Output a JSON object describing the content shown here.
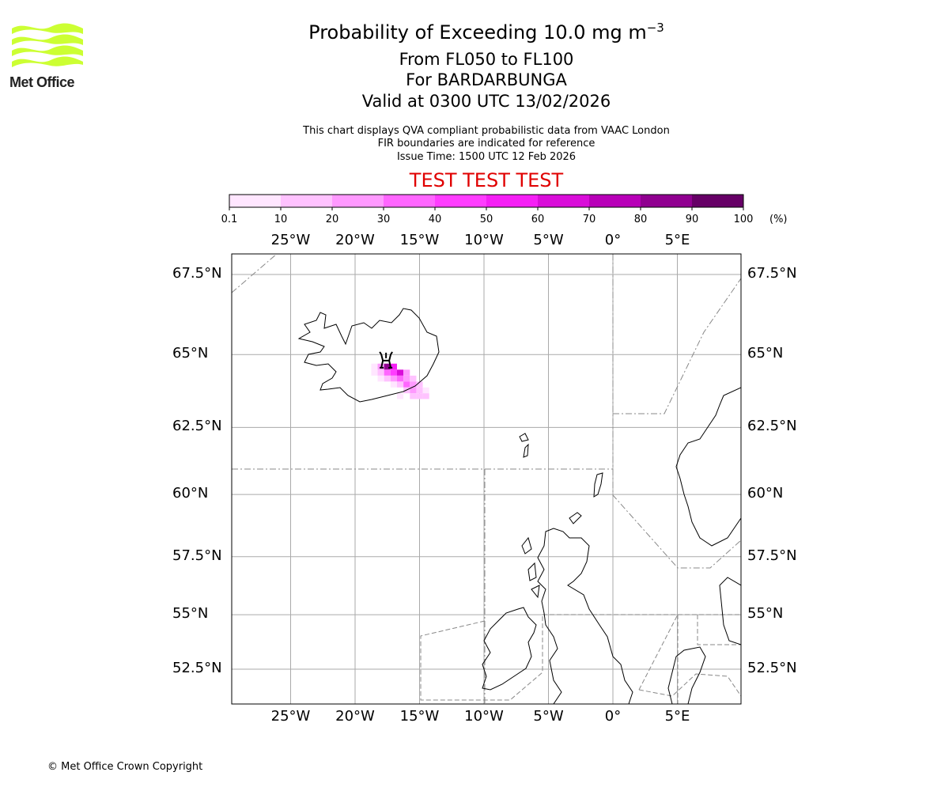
{
  "logo": {
    "text": "Met Office",
    "color": "#ccff33"
  },
  "title": {
    "main": "Probability of Exceeding 10.0 mg m",
    "main_sup": "−3",
    "levels": "From FL050 to FL100",
    "volcano": "For BARDARBUNGA",
    "valid": "Valid at 0300 UTC 13/02/2026"
  },
  "subtitle": {
    "line1": "This chart displays QVA compliant probabilistic data from VAAC London",
    "line2": "FIR boundaries are indicated for reference",
    "line3": "Issue Time: 1500 UTC 12 Feb 2026"
  },
  "test_banner": "TEST TEST TEST",
  "colorbar": {
    "ticks": [
      "0.1",
      "10",
      "20",
      "30",
      "40",
      "50",
      "60",
      "70",
      "80",
      "90",
      "100"
    ],
    "unit": "(%)",
    "colors": [
      "#ffe6ff",
      "#ffc2ff",
      "#ff99ff",
      "#ff66ff",
      "#ff3dff",
      "#f51ff5",
      "#d90dd9",
      "#b800b8",
      "#900090",
      "#660066"
    ]
  },
  "map": {
    "lon_labels": [
      "25°W",
      "20°W",
      "15°W",
      "10°W",
      "5°W",
      "0°",
      "5°E"
    ],
    "lat_labels": [
      "67.5°N",
      "65°N",
      "62.5°N",
      "60°N",
      "57.5°N",
      "55°N",
      "52.5°N"
    ],
    "volcano_marker": {
      "lon": -17.6,
      "lat": 64.8
    }
  },
  "chart_data": {
    "type": "heatmap",
    "title": "Probability of Exceeding 10.0 mg m-3",
    "units": "%",
    "extent": {
      "lon": [
        -29.7,
        9.9
      ],
      "lat": [
        51.1,
        68.5
      ]
    },
    "cells": [
      {
        "lon": -18.5,
        "lat": 64.6,
        "p": 5
      },
      {
        "lon": -18,
        "lat": 64.6,
        "p": 20
      },
      {
        "lon": -17.5,
        "lat": 64.6,
        "p": 85
      },
      {
        "lon": -17,
        "lat": 64.6,
        "p": 55
      },
      {
        "lon": -18.5,
        "lat": 64.4,
        "p": 5
      },
      {
        "lon": -18,
        "lat": 64.4,
        "p": 15
      },
      {
        "lon": -17.5,
        "lat": 64.4,
        "p": 30
      },
      {
        "lon": -17,
        "lat": 64.4,
        "p": 45
      },
      {
        "lon": -16.5,
        "lat": 64.4,
        "p": 60
      },
      {
        "lon": -16,
        "lat": 64.4,
        "p": 20
      },
      {
        "lon": -18,
        "lat": 64.2,
        "p": 5
      },
      {
        "lon": -17.5,
        "lat": 64.2,
        "p": 10
      },
      {
        "lon": -17,
        "lat": 64.2,
        "p": 25
      },
      {
        "lon": -16.5,
        "lat": 64.2,
        "p": 35
      },
      {
        "lon": -16,
        "lat": 64.2,
        "p": 25
      },
      {
        "lon": -15.5,
        "lat": 64.2,
        "p": 10
      },
      {
        "lon": -17,
        "lat": 64.0,
        "p": 5
      },
      {
        "lon": -16.5,
        "lat": 64.0,
        "p": 15
      },
      {
        "lon": -16,
        "lat": 64.0,
        "p": 30
      },
      {
        "lon": -15.5,
        "lat": 64.0,
        "p": 25
      },
      {
        "lon": -15,
        "lat": 64.0,
        "p": 10
      },
      {
        "lon": -16,
        "lat": 63.8,
        "p": 15
      },
      {
        "lon": -15.5,
        "lat": 63.8,
        "p": 25
      },
      {
        "lon": -15,
        "lat": 63.8,
        "p": 15
      },
      {
        "lon": -14.5,
        "lat": 63.8,
        "p": 5
      },
      {
        "lon": -16.5,
        "lat": 63.6,
        "p": 2
      },
      {
        "lon": -15.5,
        "lat": 63.6,
        "p": 10
      },
      {
        "lon": -15,
        "lat": 63.6,
        "p": 15
      },
      {
        "lon": -14.5,
        "lat": 63.6,
        "p": 15
      }
    ]
  },
  "footer": {
    "copyright": "© Met Office Crown Copyright"
  }
}
